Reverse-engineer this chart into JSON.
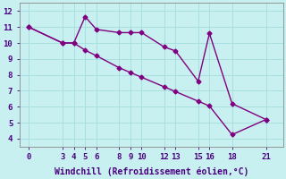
{
  "line1_x": [
    0,
    3,
    4,
    5,
    6,
    8,
    9,
    10,
    12,
    13,
    15,
    16,
    18,
    21
  ],
  "line1_y": [
    11,
    10,
    10,
    11.65,
    10.85,
    10.65,
    10.65,
    10.65,
    9.75,
    9.5,
    7.6,
    10.6,
    6.2,
    5.2
  ],
  "line2_x": [
    0,
    3,
    4,
    5,
    6,
    8,
    9,
    10,
    12,
    13,
    15,
    16,
    18,
    21
  ],
  "line2_y": [
    11,
    10,
    10,
    9.55,
    9.2,
    8.45,
    8.15,
    7.85,
    7.25,
    6.95,
    6.35,
    6.05,
    4.25,
    5.2
  ],
  "line_color": "#800080",
  "bg_color": "#c8f0f0",
  "grid_color": "#a8e0e0",
  "xlabel": "Windchill (Refroidissement éolien,°C)",
  "xticks": [
    0,
    3,
    4,
    5,
    6,
    8,
    9,
    10,
    12,
    13,
    15,
    16,
    18,
    21
  ],
  "yticks": [
    4,
    5,
    6,
    7,
    8,
    9,
    10,
    11,
    12
  ],
  "xlim": [
    -0.8,
    22.5
  ],
  "ylim": [
    3.5,
    12.5
  ],
  "marker": "D",
  "markersize": 2.5,
  "linewidth": 1.0,
  "xlabel_fontsize": 7.0,
  "tick_fontsize": 6.5
}
